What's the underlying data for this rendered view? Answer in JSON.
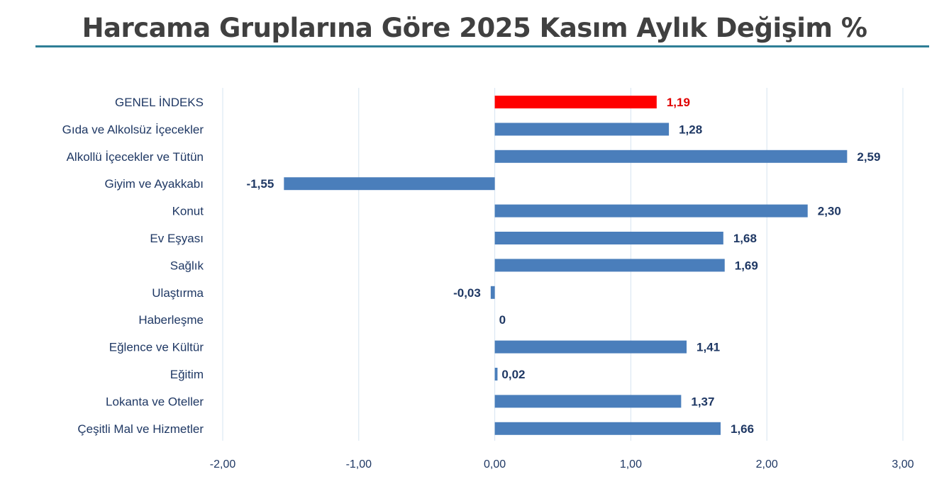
{
  "chart_data": {
    "type": "bar",
    "orientation": "horizontal",
    "title": "Harcama Gruplarına Göre 2025 Kasım Aylık Değişim %",
    "xlabel": "",
    "ylabel": "",
    "xlim": [
      -2,
      3
    ],
    "xticks": [
      -2,
      -1,
      0,
      1,
      2,
      3
    ],
    "xtick_labels": [
      "-2,00",
      "-1,00",
      "0,00",
      "1,00",
      "2,00",
      "3,00"
    ],
    "grid": "vertical",
    "categories": [
      "GENEL İNDEKS",
      "Gıda ve Alkolsüz İçecekler",
      "Alkollü İçecekler ve Tütün",
      "Giyim ve Ayakkabı",
      "Konut",
      "Ev Eşyası",
      "Sağlık",
      "Ulaştırma",
      "Haberleşme",
      "Eğlence ve Kültür",
      "Eğitim",
      "Lokanta ve Oteller",
      "Çeşitli Mal ve Hizmetler"
    ],
    "values": [
      1.19,
      1.28,
      2.59,
      -1.55,
      2.3,
      1.68,
      1.69,
      -0.03,
      0,
      1.41,
      0.02,
      1.37,
      1.66
    ],
    "value_labels": [
      "1,19",
      "1,28",
      "2,59",
      "-1,55",
      "2,30",
      "1,68",
      "1,69",
      "-0,03",
      "0",
      "1,41",
      "0,02",
      "1,37",
      "1,66"
    ],
    "highlight_index": 0,
    "colors": {
      "bar": "#4a7ebb",
      "highlight": "#ff0000",
      "label": "#1f3864",
      "highlight_label": "#e00000",
      "grid": "#d6e4f0",
      "category_text": "#1f3864"
    }
  }
}
